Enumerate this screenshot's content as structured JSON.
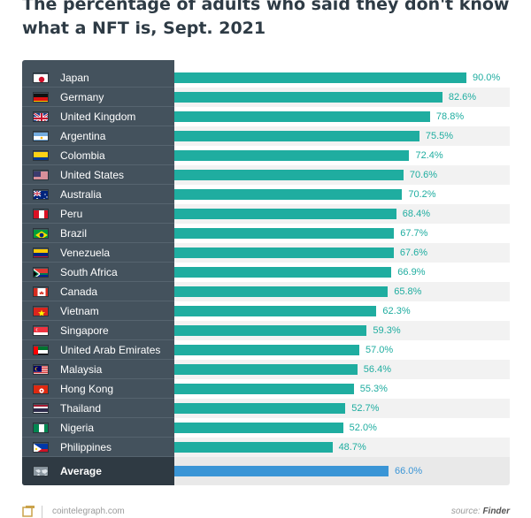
{
  "chart_data": {
    "type": "bar",
    "orientation": "horizontal",
    "title": "The percentage of adults who said they don't know what a NFT is, Sept. 2021",
    "title_lines": [
      "The percentage of adults who said they don't know",
      "what a NFT is, Sept. 2021"
    ],
    "categories": [
      "Japan",
      "Germany",
      "United Kingdom",
      "Argentina",
      "Colombia",
      "United States",
      "Australia",
      "Peru",
      "Brazil",
      "Venezuela",
      "South Africa",
      "Canada",
      "Vietnam",
      "Singapore",
      "United Arab Emirates",
      "Malaysia",
      "Hong Kong",
      "Thailand",
      "Nigeria",
      "Philippines"
    ],
    "values": [
      90.0,
      82.6,
      78.8,
      75.5,
      72.4,
      70.6,
      70.2,
      68.4,
      67.7,
      67.6,
      66.9,
      65.8,
      62.3,
      59.3,
      57.0,
      56.4,
      55.3,
      52.7,
      52.0,
      48.7
    ],
    "value_labels": [
      "90.0%",
      "82.6%",
      "78.8%",
      "75.5%",
      "72.4%",
      "70.6%",
      "70.2%",
      "68.4%",
      "67.7%",
      "67.6%",
      "66.9%",
      "65.8%",
      "62.3%",
      "59.3%",
      "57.0%",
      "56.4%",
      "55.3%",
      "52.7%",
      "52.0%",
      "48.7%"
    ],
    "average": {
      "label": "Average",
      "value": 66.0,
      "value_label": "66.0%"
    },
    "xlim": [
      0,
      100
    ],
    "grid": false,
    "legend": "none",
    "bar_color": "#1fada0",
    "average_color": "#3a95d6"
  },
  "flags": [
    "japan-flag-icon",
    "germany-flag-icon",
    "united-kingdom-flag-icon",
    "argentina-flag-icon",
    "colombia-flag-icon",
    "united-states-flag-icon",
    "australia-flag-icon",
    "peru-flag-icon",
    "brazil-flag-icon",
    "venezuela-flag-icon",
    "south-africa-flag-icon",
    "canada-flag-icon",
    "vietnam-flag-icon",
    "singapore-flag-icon",
    "uae-flag-icon",
    "malaysia-flag-icon",
    "hong-kong-flag-icon",
    "thailand-flag-icon",
    "nigeria-flag-icon",
    "philippines-flag-icon"
  ],
  "footer": {
    "site": "cointelegraph.com",
    "source_prefix": "source: ",
    "source_name": "Finder"
  }
}
